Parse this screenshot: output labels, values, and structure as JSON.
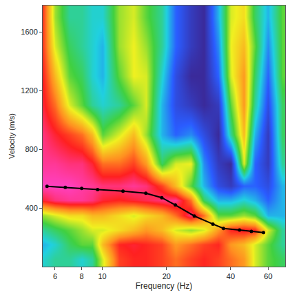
{
  "chart_data": {
    "type": "heatmap",
    "xlabel": "Frequency (Hz)",
    "ylabel": "Velocity (m/s)",
    "log": "x",
    "grid": false,
    "xlim": [
      5.25,
      72
    ],
    "ylim": [
      0,
      1780
    ],
    "xticks": [
      6,
      8,
      10,
      20,
      40,
      60
    ],
    "yticks": [
      400,
      800,
      1200,
      1600
    ],
    "cells": {
      "x": [
        5.3,
        6,
        7,
        8,
        9,
        10,
        12,
        14,
        16,
        19,
        22,
        26,
        30,
        35,
        40,
        46,
        52,
        60,
        70
      ],
      "y": [
        50,
        150,
        250,
        350,
        450,
        550,
        700,
        900,
        1100,
        1300,
        1500,
        1700
      ],
      "z": [
        [
          0.35,
          0.4,
          0.4,
          0.35,
          0.4,
          0.6,
          0.85,
          0.88,
          0.88,
          0.85,
          0.8,
          0.85,
          0.88,
          0.85,
          0.8,
          0.75,
          0.6,
          0.5,
          0.45
        ],
        [
          0.3,
          0.35,
          0.45,
          0.5,
          0.5,
          0.7,
          0.88,
          0.9,
          0.88,
          0.85,
          0.75,
          0.8,
          0.85,
          0.88,
          0.75,
          0.7,
          0.6,
          0.5,
          0.4
        ],
        [
          0.4,
          0.45,
          0.5,
          0.55,
          0.6,
          0.6,
          0.65,
          0.7,
          0.75,
          0.7,
          0.6,
          0.55,
          0.6,
          0.75,
          0.88,
          0.9,
          0.88,
          0.6,
          0.4
        ],
        [
          0.55,
          0.6,
          0.65,
          0.65,
          0.7,
          0.7,
          0.65,
          0.6,
          0.65,
          0.7,
          0.8,
          0.95,
          0.8,
          0.5,
          0.5,
          0.55,
          0.5,
          0.3,
          0.3
        ],
        [
          0.9,
          0.95,
          0.97,
          0.97,
          0.95,
          0.9,
          0.88,
          0.9,
          0.92,
          0.95,
          0.97,
          0.8,
          0.45,
          0.3,
          0.3,
          0.35,
          0.3,
          0.2,
          0.3
        ],
        [
          1,
          1,
          1,
          0.98,
          0.97,
          0.95,
          0.95,
          0.97,
          0.95,
          0.85,
          0.7,
          0.5,
          0.3,
          0.15,
          0.1,
          0.2,
          0.2,
          0.15,
          0.3
        ],
        [
          0.97,
          0.97,
          0.95,
          0.95,
          0.9,
          0.8,
          0.8,
          0.85,
          0.75,
          0.45,
          0.6,
          0.62,
          0.25,
          0.1,
          0.05,
          0.6,
          0.2,
          0.1,
          0.4
        ],
        [
          0.95,
          0.9,
          0.85,
          0.8,
          0.7,
          0.5,
          0.6,
          0.7,
          0.55,
          0.3,
          0.2,
          0.25,
          0.15,
          0.05,
          0.4,
          0.7,
          0.3,
          0.1,
          0.45
        ],
        [
          0.9,
          0.8,
          0.6,
          0.5,
          0.4,
          0.35,
          0.4,
          0.5,
          0.6,
          0.3,
          0.15,
          0.1,
          0.05,
          0.1,
          0.5,
          0.75,
          0.4,
          0.15,
          0.45
        ],
        [
          0.88,
          0.7,
          0.5,
          0.45,
          0.35,
          0.3,
          0.5,
          0.62,
          0.6,
          0.35,
          0.15,
          0.05,
          0.05,
          0.2,
          0.6,
          0.75,
          0.45,
          0.2,
          0.5
        ],
        [
          0.85,
          0.6,
          0.45,
          0.4,
          0.35,
          0.3,
          0.55,
          0.62,
          0.55,
          0.4,
          0.2,
          0.1,
          0.05,
          0.25,
          0.62,
          0.7,
          0.5,
          0.25,
          0.5
        ],
        [
          0.85,
          0.55,
          0.4,
          0.4,
          0.35,
          0.35,
          0.55,
          0.6,
          0.5,
          0.4,
          0.2,
          0.1,
          0.05,
          0.3,
          0.6,
          0.65,
          0.45,
          0.3,
          0.5
        ]
      ]
    },
    "series": [
      {
        "type": "line",
        "color": "#000000",
        "marker": "circle",
        "line_style": "solid",
        "x": [
          5.5,
          6.7,
          8,
          9.5,
          12.5,
          16,
          19,
          22,
          27,
          33,
          37,
          44,
          50,
          57
        ],
        "values": [
          548,
          540,
          533,
          525,
          515,
          500,
          470,
          420,
          345,
          290,
          260,
          250,
          240,
          232
        ]
      }
    ]
  }
}
